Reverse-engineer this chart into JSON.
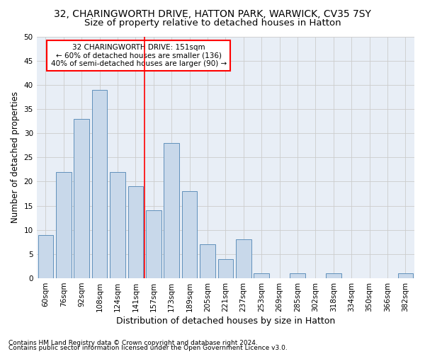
{
  "title": "32, CHARINGWORTH DRIVE, HATTON PARK, WARWICK, CV35 7SY",
  "subtitle": "Size of property relative to detached houses in Hatton",
  "xlabel": "Distribution of detached houses by size in Hatton",
  "ylabel": "Number of detached properties",
  "categories": [
    "60sqm",
    "76sqm",
    "92sqm",
    "108sqm",
    "124sqm",
    "141sqm",
    "157sqm",
    "173sqm",
    "189sqm",
    "205sqm",
    "221sqm",
    "237sqm",
    "253sqm",
    "269sqm",
    "285sqm",
    "302sqm",
    "318sqm",
    "334sqm",
    "350sqm",
    "366sqm",
    "382sqm"
  ],
  "values": [
    9,
    22,
    33,
    39,
    22,
    19,
    14,
    28,
    18,
    7,
    4,
    8,
    1,
    0,
    1,
    0,
    1,
    0,
    0,
    0,
    1
  ],
  "bar_color": "#c8d8ea",
  "bar_edge_color": "#6090bb",
  "grid_color": "#cccccc",
  "vline_color": "red",
  "vline_x": 5.5,
  "annotation_text": "32 CHARINGWORTH DRIVE: 151sqm\n← 60% of detached houses are smaller (136)\n40% of semi-detached houses are larger (90) →",
  "annotation_box_color": "white",
  "annotation_box_edge_color": "red",
  "ylim": [
    0,
    50
  ],
  "yticks": [
    0,
    5,
    10,
    15,
    20,
    25,
    30,
    35,
    40,
    45,
    50
  ],
  "footnote1": "Contains HM Land Registry data © Crown copyright and database right 2024.",
  "footnote2": "Contains public sector information licensed under the Open Government Licence v3.0.",
  "background_color": "#e8eef6",
  "title_fontsize": 10,
  "subtitle_fontsize": 9.5,
  "xlabel_fontsize": 9,
  "ylabel_fontsize": 8.5,
  "tick_fontsize": 7.5,
  "annotation_fontsize": 7.5,
  "footnote_fontsize": 6.5
}
